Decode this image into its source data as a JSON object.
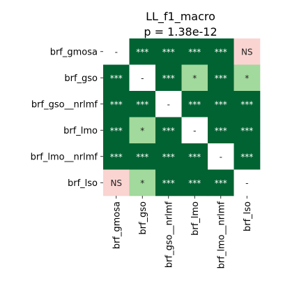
{
  "chart_data": {
    "type": "heatmap",
    "title": "LL_f1_macro",
    "subtitle": "p = 1.38e-12",
    "rows": [
      "brf_gmosa",
      "brf_gso",
      "brf_gso__nrlmf",
      "brf_lmo",
      "brf_lmo__nrlmf",
      "brf_lso"
    ],
    "columns": [
      "brf_gmosa",
      "brf_gso",
      "brf_gso__nrlmf",
      "brf_lmo",
      "brf_lmo__nrlmf",
      "brf_lso"
    ],
    "cells": [
      [
        "-",
        "***",
        "***",
        "***",
        "***",
        "NS"
      ],
      [
        "***",
        "-",
        "***",
        "*",
        "***",
        "*"
      ],
      [
        "***",
        "***",
        "-",
        "***",
        "***",
        "***"
      ],
      [
        "***",
        "*",
        "***",
        "-",
        "***",
        "***"
      ],
      [
        "***",
        "***",
        "***",
        "***",
        "-",
        "***"
      ],
      [
        "NS",
        "*",
        "***",
        "***",
        "***",
        "-"
      ]
    ],
    "colors": {
      "***": "#006331",
      "*": "#a2d99c",
      "NS": "#fad4d1",
      "-": "#ffffff"
    },
    "text_colors": {
      "***": "#ffffff",
      "*": "#222222",
      "NS": "#222222",
      "-": "#222222"
    },
    "legend": "none",
    "grid": false
  }
}
